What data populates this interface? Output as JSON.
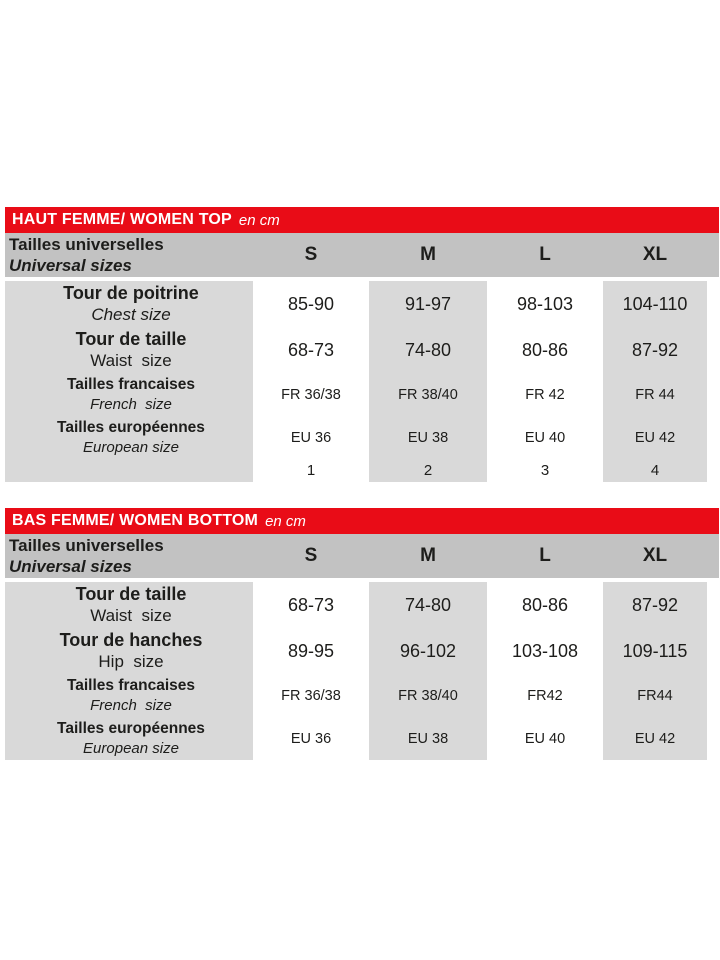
{
  "colors": {
    "red": "#e90c17",
    "header_gray": "#c2c2c2",
    "cell_gray": "#d9d9d9",
    "text": "#1d1d1b"
  },
  "tables": [
    {
      "title": "HAUT FEMME/ WOMEN TOP",
      "unit": "en cm",
      "header": {
        "label_fr": "Tailles universelles",
        "label_en": "Universal sizes",
        "sizes": [
          "S",
          "M",
          "L",
          "XL"
        ]
      },
      "rows": [
        {
          "label_fr": "Tour de poitrine",
          "label_en": "Chest size",
          "en_style": "italic",
          "style": "large",
          "values": [
            "85-90",
            "91-97",
            "98-103",
            "104-110"
          ]
        },
        {
          "label_fr": "Tour de taille",
          "label_en": "Waist  size",
          "en_style": "regular",
          "style": "large",
          "values": [
            "68-73",
            "74-80",
            "80-86",
            "87-92"
          ]
        },
        {
          "label_fr": "Tailles francaises",
          "label_en": "French  size",
          "en_style": "italic",
          "style": "small",
          "values": [
            "FR 36/38",
            "FR 38/40",
            "FR 42",
            "FR 44"
          ]
        },
        {
          "label_fr": "Tailles européennes",
          "label_en": "European size",
          "en_style": "italic",
          "style": "small",
          "values": [
            "EU 36",
            "EU 38",
            "EU 40",
            "EU 42"
          ]
        },
        {
          "label_fr": "",
          "label_en": "",
          "en_style": "regular",
          "style": "numbers",
          "values": [
            "1",
            "2",
            "3",
            "4"
          ]
        }
      ]
    },
    {
      "title": "BAS FEMME/ WOMEN BOTTOM",
      "unit": "en cm",
      "header": {
        "label_fr": "Tailles universelles",
        "label_en": "Universal sizes",
        "sizes": [
          "S",
          "M",
          "L",
          "XL"
        ]
      },
      "rows": [
        {
          "label_fr": "Tour de taille",
          "label_en": "Waist  size",
          "en_style": "regular",
          "style": "large",
          "values": [
            "68-73",
            "74-80",
            "80-86",
            "87-92"
          ]
        },
        {
          "label_fr": "Tour de hanches",
          "label_en": "Hip  size",
          "en_style": "regular",
          "style": "large",
          "values": [
            "89-95",
            "96-102",
            "103-108",
            "109-115"
          ]
        },
        {
          "label_fr": "Tailles francaises",
          "label_en": "French  size",
          "en_style": "italic",
          "style": "small",
          "values": [
            "FR 36/38",
            "FR 38/40",
            "FR42",
            "FR44"
          ]
        },
        {
          "label_fr": "Tailles européennes",
          "label_en": "European size",
          "en_style": "italic",
          "style": "small",
          "values": [
            "EU 36",
            "EU 38",
            "EU 40",
            "EU 42"
          ]
        }
      ]
    }
  ]
}
